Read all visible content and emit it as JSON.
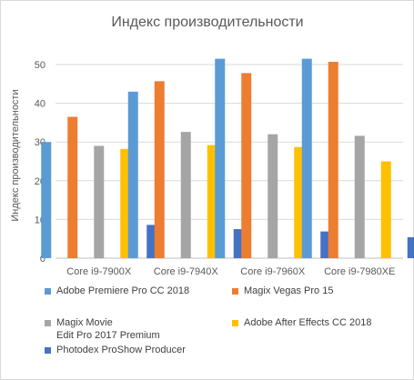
{
  "chart_data": {
    "type": "bar",
    "title": "Индекс производительности",
    "ylabel": "Индекс производительности",
    "xlabel": "",
    "ylim": [
      0,
      60
    ],
    "yticks": [
      0,
      10,
      20,
      30,
      40,
      50
    ],
    "grid": true,
    "legend_position": "bottom",
    "categories": [
      "Core i9-7900X",
      "Core i9-7940X",
      "Core i9-7960X",
      "Core i9-7980XE"
    ],
    "series": [
      {
        "name": "Adobe Premiere Pro CC 2018",
        "color": "#5b9bd5",
        "values": [
          30,
          43,
          51.5,
          51.5
        ]
      },
      {
        "name": "Magix Vegas Pro 15",
        "color": "#ed7d31",
        "values": [
          36.5,
          45.7,
          47.8,
          50.7
        ]
      },
      {
        "name": "Magix Movie\nEdit Pro 2017  Premium",
        "color": "#a5a5a5",
        "values": [
          29,
          32.6,
          32,
          31.6
        ]
      },
      {
        "name": "Adobe After Effects CC 2018",
        "color": "#ffc000",
        "values": [
          28.2,
          29.2,
          28.7,
          25
        ]
      },
      {
        "name": "Photodex ProShow Producer",
        "color": "#4472c4",
        "values": [
          8.6,
          7.5,
          6.9,
          5.4
        ]
      }
    ]
  }
}
